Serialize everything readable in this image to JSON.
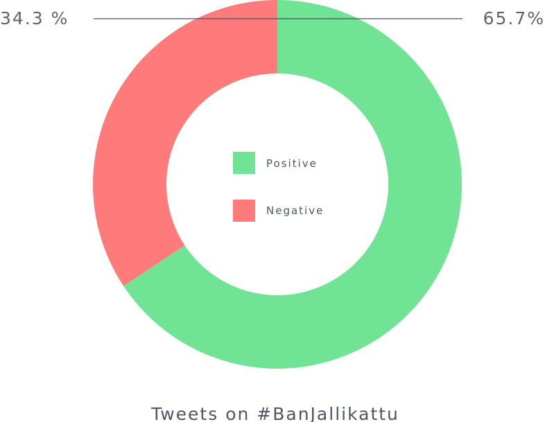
{
  "chart_data": {
    "type": "pie",
    "donut": true,
    "title": "Tweets on #BanJallikattu",
    "slices": [
      {
        "name": "Positive",
        "value": 65.7,
        "label": "65.7%",
        "color": "#70e394"
      },
      {
        "name": "Negative",
        "value": 34.3,
        "label": "34.3 %",
        "color": "#ff7b7b"
      }
    ],
    "legend": {
      "placement": "center",
      "entries": [
        "Positive",
        "Negative"
      ]
    }
  }
}
